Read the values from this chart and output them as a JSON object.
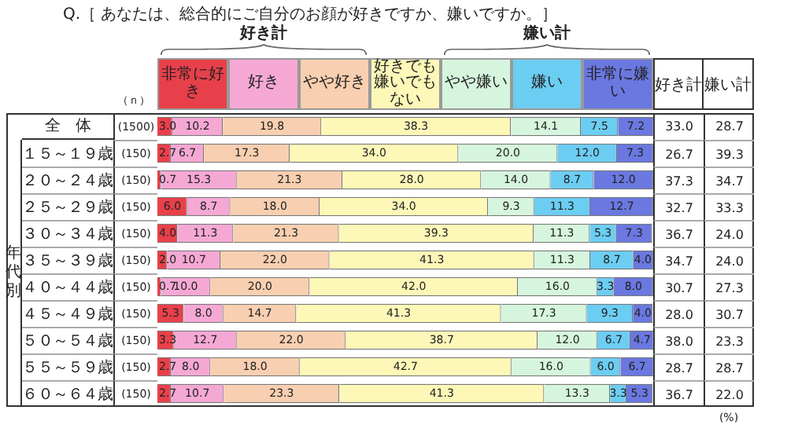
{
  "chart_data": {
    "type": "bar",
    "title": "Q.［ あなたは、総合的にご自分のお顔が好きですか、嫌いですか。］",
    "orientation": "horizontal",
    "stacked": true,
    "xlim": [
      0,
      100
    ],
    "tick_labels": false,
    "legend": "top",
    "categories": [
      "全　体",
      "１５～１９歳",
      "２０～２４歳",
      "２５～２９歳",
      "３０～３４歳",
      "３５～３９歳",
      "４０～４４歳",
      "４５～４９歳",
      "５０～５４歳",
      "５５～５９歳",
      "６０～６４歳"
    ],
    "series": [
      {
        "name": "非常に好き",
        "color": "#e8404a",
        "values": [
          3.0,
          2.7,
          0.7,
          6.0,
          4.0,
          2.0,
          0.7,
          5.3,
          3.3,
          2.7,
          2.7
        ],
        "value_labels": [
          "3.0",
          "2.7",
          "0.7",
          "6.0",
          "4.0",
          "2.0",
          "0.7",
          "5.3",
          "3.3",
          "2.7",
          "2.7"
        ]
      },
      {
        "name": "好き",
        "color": "#f5a8d4",
        "values": [
          10.2,
          6.7,
          15.3,
          8.7,
          11.3,
          10.7,
          10.0,
          8.0,
          12.7,
          8.0,
          10.7
        ],
        "value_labels": [
          "10.2",
          "6.7",
          "15.3",
          "8.7",
          "11.3",
          "10.7",
          "10.0",
          "8.0",
          "12.7",
          "8.0",
          "10.7"
        ]
      },
      {
        "name": "やや好き",
        "color": "#f8cfb0",
        "values": [
          19.8,
          17.3,
          21.3,
          18.0,
          21.3,
          22.0,
          20.0,
          14.7,
          22.0,
          18.0,
          23.3
        ],
        "value_labels": [
          "19.8",
          "17.3",
          "21.3",
          "18.0",
          "21.3",
          "22.0",
          "20.0",
          "14.7",
          "22.0",
          "18.0",
          "23.3"
        ]
      },
      {
        "name": "好きでも嫌いでもない",
        "color": "#fdf7b8",
        "values": [
          38.3,
          34.0,
          28.0,
          34.0,
          39.3,
          41.3,
          42.0,
          41.3,
          38.7,
          42.7,
          41.3
        ],
        "value_labels": [
          "38.3",
          "34.0",
          "28.0",
          "34.0",
          "39.3",
          "41.3",
          "42.0",
          "41.3",
          "38.7",
          "42.7",
          "41.3"
        ]
      },
      {
        "name": "やや嫌い",
        "color": "#d6f5de",
        "values": [
          14.1,
          20.0,
          14.0,
          9.3,
          11.3,
          11.3,
          16.0,
          17.3,
          12.0,
          16.0,
          13.3
        ],
        "value_labels": [
          "14.1",
          "20.0",
          "14.0",
          "9.3",
          "11.3",
          "11.3",
          "16.0",
          "17.3",
          "12.0",
          "16.0",
          "13.3"
        ]
      },
      {
        "name": "嫌い",
        "color": "#6ccdf2",
        "values": [
          7.5,
          12.0,
          8.7,
          11.3,
          5.3,
          8.7,
          3.3,
          9.3,
          6.7,
          6.0,
          3.3
        ],
        "value_labels": [
          "7.5",
          "12.0",
          "8.7",
          "11.3",
          "5.3",
          "8.7",
          "3.3",
          "9.3",
          "6.7",
          "6.0",
          "3.3"
        ]
      },
      {
        "name": "非常に嫌い",
        "color": "#6a78e0",
        "values": [
          7.2,
          7.3,
          12.0,
          12.7,
          7.3,
          4.0,
          8.0,
          4.0,
          4.7,
          6.7,
          5.3
        ],
        "value_labels": [
          "7.2",
          "7.3",
          "12.0",
          "12.7",
          "7.3",
          "4.0",
          "8.0",
          "4.0",
          "4.7",
          "6.7",
          "5.3"
        ]
      }
    ],
    "annotations": [
      "好き計",
      "嫌い計",
      "（ｎ）",
      "(1500)",
      "(150)",
      "(150)",
      "(150)",
      "(150)",
      "(150)",
      "(150)",
      "(150)",
      "(150)",
      "(150)",
      "(150)",
      "年代別",
      "33.0",
      "28.7",
      "26.7",
      "39.3",
      "37.3",
      "34.7",
      "32.7",
      "33.3",
      "36.7",
      "24.0",
      "34.7",
      "24.0",
      "30.7",
      "27.3",
      "28.0",
      "30.7",
      "38.0",
      "23.3",
      "28.7",
      "28.7",
      "36.7",
      "22.0",
      "(%)"
    ]
  }
}
